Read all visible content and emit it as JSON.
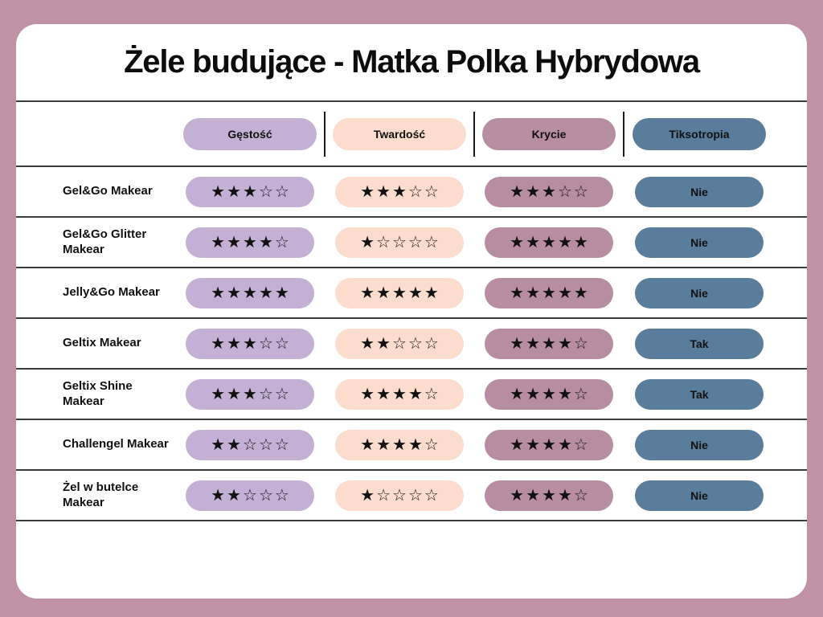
{
  "page": {
    "title": "Żele budujące - Matka Polka Hybrydowa"
  },
  "colors": {
    "background": "#bf93a5",
    "card": "#ffffff",
    "divider_line": "#3b3b3b",
    "text": "#111111",
    "col_gestosc": "#c4b0d4",
    "col_twardosc": "#fcdccc",
    "col_krycie": "#b78da1",
    "col_tiksotropia": "#5a7d9b"
  },
  "icons": {
    "star_filled_glyph": "★",
    "star_empty_glyph": "☆"
  },
  "chart_data": {
    "type": "table",
    "title": "Żele budujące - Matka Polka Hybrydowa",
    "rating_max": 5,
    "columns": [
      {
        "key": "gestosc",
        "label": "Gęstość",
        "kind": "stars",
        "color": "#c4b0d4"
      },
      {
        "key": "twardosc",
        "label": "Twardość",
        "kind": "stars",
        "color": "#fcdccc"
      },
      {
        "key": "krycie",
        "label": "Krycie",
        "kind": "stars",
        "color": "#b78da1"
      },
      {
        "key": "tiksotropia",
        "label": "Tiksotropia",
        "kind": "text",
        "color": "#5a7d9b"
      }
    ],
    "rows": [
      {
        "product": "Gel&Go Makear",
        "gestosc": 3,
        "twardosc": 3,
        "krycie": 3,
        "tiksotropia": "Nie"
      },
      {
        "product": "Gel&Go Glitter Makear",
        "gestosc": 4,
        "twardosc": 1,
        "krycie": 5,
        "tiksotropia": "Nie"
      },
      {
        "product": "Jelly&Go Makear",
        "gestosc": 5,
        "twardosc": 5,
        "krycie": 5,
        "tiksotropia": "Nie"
      },
      {
        "product": "Geltix Makear",
        "gestosc": 3,
        "twardosc": 2,
        "krycie": 4,
        "tiksotropia": "Tak"
      },
      {
        "product": "Geltix Shine Makear",
        "gestosc": 3,
        "twardosc": 4,
        "krycie": 4,
        "tiksotropia": "Tak"
      },
      {
        "product": "Challengel Makear",
        "gestosc": 2,
        "twardosc": 4,
        "krycie": 4,
        "tiksotropia": "Nie"
      },
      {
        "product": "Żel w butelce Makear",
        "gestosc": 2,
        "twardosc": 1,
        "krycie": 4,
        "tiksotropia": "Nie"
      }
    ]
  }
}
